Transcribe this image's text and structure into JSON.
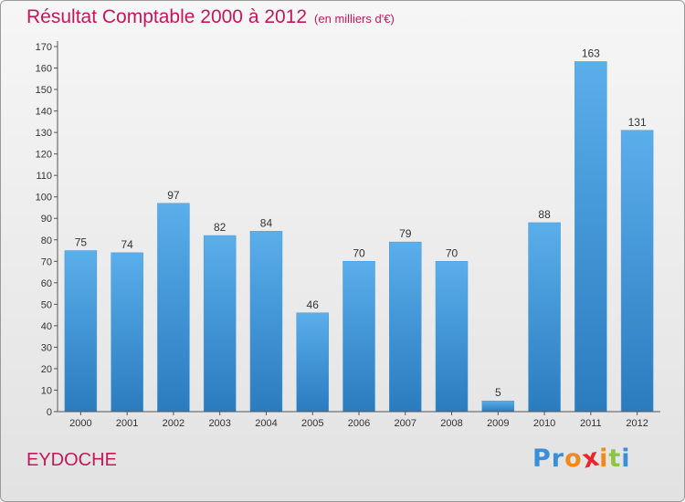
{
  "header": {
    "title": "Résultat Comptable 2000 à 2012",
    "unit": "(en milliers d'€)"
  },
  "footer": {
    "commune": "EYDOCHE",
    "logo_letters": [
      {
        "ch": "P",
        "color": "#3a8fd6"
      },
      {
        "ch": "r",
        "color": "#3a8fd6"
      },
      {
        "ch": "o",
        "color": "#f08a1c"
      },
      {
        "ch": "x",
        "color": "#e8262c"
      },
      {
        "ch": "i",
        "color": "#f08a1c"
      },
      {
        "ch": "t",
        "color": "#8cc63f"
      },
      {
        "ch": "i",
        "color": "#3a8fd6"
      }
    ]
  },
  "colors": {
    "title": "#c2185b",
    "bar_top": "#5aaeea",
    "bar_bottom": "#2a7cbf",
    "axis": "#555555"
  },
  "chart_data": {
    "type": "bar",
    "title": "Résultat Comptable 2000 à 2012",
    "subtitle": "(en milliers d'€)",
    "xlabel": "",
    "ylabel": "",
    "categories": [
      "2000",
      "2001",
      "2002",
      "2003",
      "2004",
      "2005",
      "2006",
      "2007",
      "2008",
      "2009",
      "2010",
      "2011",
      "2012"
    ],
    "values": [
      75,
      74,
      97,
      82,
      84,
      46,
      70,
      79,
      70,
      5,
      88,
      163,
      131
    ],
    "ylim": [
      0,
      170
    ],
    "yticks": [
      0,
      10,
      20,
      30,
      40,
      50,
      60,
      70,
      80,
      90,
      100,
      110,
      120,
      130,
      140,
      150,
      160,
      170
    ],
    "grid": false,
    "legend": "none"
  }
}
